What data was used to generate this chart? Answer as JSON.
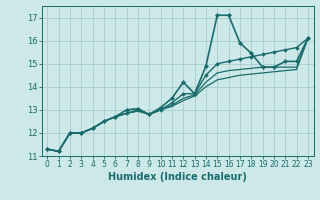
{
  "xlabel": "Humidex (Indice chaleur)",
  "ylabel": "",
  "xlim": [
    -0.5,
    23.5
  ],
  "ylim": [
    11,
    17.5
  ],
  "yticks": [
    11,
    12,
    13,
    14,
    15,
    16,
    17
  ],
  "xticks": [
    0,
    1,
    2,
    3,
    4,
    5,
    6,
    7,
    8,
    9,
    10,
    11,
    12,
    13,
    14,
    15,
    16,
    17,
    18,
    19,
    20,
    21,
    22,
    23
  ],
  "background_color": "#cce8e8",
  "grid_color": "#aacccc",
  "line_color": "#1a6b6b",
  "lines": [
    [
      11.3,
      11.2,
      12.0,
      12.0,
      12.2,
      12.5,
      12.7,
      13.0,
      13.05,
      12.8,
      13.1,
      13.5,
      14.2,
      13.7,
      14.9,
      17.1,
      17.1,
      15.9,
      15.45,
      14.85,
      14.85,
      15.1,
      15.1,
      16.1
    ],
    [
      11.3,
      11.2,
      12.0,
      12.0,
      12.2,
      12.5,
      12.7,
      12.85,
      13.0,
      12.8,
      13.0,
      13.3,
      13.7,
      13.7,
      14.5,
      15.0,
      15.1,
      15.2,
      15.3,
      15.4,
      15.5,
      15.6,
      15.7,
      16.1
    ],
    [
      11.3,
      11.2,
      12.0,
      12.0,
      12.2,
      12.5,
      12.7,
      12.85,
      12.95,
      12.8,
      13.0,
      13.2,
      13.5,
      13.65,
      14.2,
      14.6,
      14.7,
      14.75,
      14.8,
      14.85,
      14.85,
      14.85,
      14.85,
      16.1
    ],
    [
      11.3,
      11.2,
      12.0,
      12.0,
      12.2,
      12.5,
      12.7,
      12.85,
      12.95,
      12.8,
      13.0,
      13.15,
      13.4,
      13.6,
      14.0,
      14.3,
      14.4,
      14.5,
      14.55,
      14.6,
      14.65,
      14.7,
      14.75,
      16.1
    ]
  ],
  "line_styles": [
    {
      "lw": 1.2,
      "marker": "D",
      "ms": 2.0
    },
    {
      "lw": 1.0,
      "marker": "D",
      "ms": 1.8
    },
    {
      "lw": 0.9,
      "marker": null,
      "ms": 0
    },
    {
      "lw": 0.9,
      "marker": null,
      "ms": 0
    }
  ]
}
